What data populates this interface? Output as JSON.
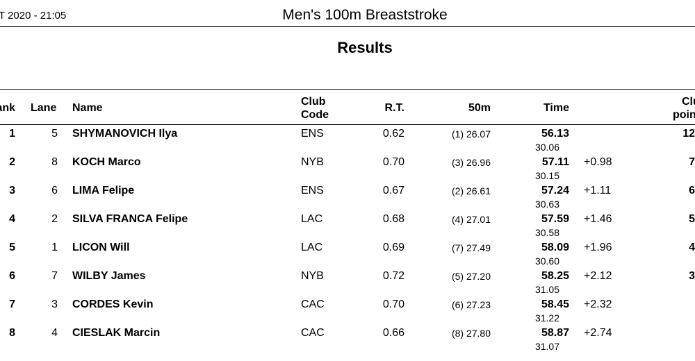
{
  "header": {
    "date_time": "T 2020 - 21:05",
    "event_title": "Men's 100m Breaststroke"
  },
  "section_title": "Results",
  "columns": {
    "rank": "ank",
    "lane": "Lane",
    "name": "Name",
    "club_code_1": "Club",
    "club_code_2": "Code",
    "rt": "R.T.",
    "split50": "50m",
    "time": "Time",
    "club_points_1": "Clu",
    "club_points_2": "poin"
  },
  "rows": [
    {
      "rank": "1",
      "lane": "5",
      "name": "SHYMANOVICH Ilya",
      "club": "ENS",
      "rt": "0.62",
      "split50": "(1) 26.07",
      "time": "56.13",
      "split2": "30.06",
      "behind": "",
      "points": "12"
    },
    {
      "rank": "2",
      "lane": "8",
      "name": "KOCH Marco",
      "club": "NYB",
      "rt": "0.70",
      "split50": "(3) 26.96",
      "time": "57.11",
      "split2": "30.15",
      "behind": "+0.98",
      "points": "7"
    },
    {
      "rank": "3",
      "lane": "6",
      "name": "LIMA Felipe",
      "club": "ENS",
      "rt": "0.67",
      "split50": "(2) 26.61",
      "time": "57.24",
      "split2": "30.63",
      "behind": "+1.11",
      "points": "6"
    },
    {
      "rank": "4",
      "lane": "2",
      "name": "SILVA FRANCA Felipe",
      "club": "LAC",
      "rt": "0.68",
      "split50": "(4) 27.01",
      "time": "57.59",
      "split2": "30.58",
      "behind": "+1.46",
      "points": "5"
    },
    {
      "rank": "5",
      "lane": "1",
      "name": "LICON Will",
      "club": "LAC",
      "rt": "0.69",
      "split50": "(7) 27.49",
      "time": "58.09",
      "split2": "30.60",
      "behind": "+1.96",
      "points": "4"
    },
    {
      "rank": "6",
      "lane": "7",
      "name": "WILBY James",
      "club": "NYB",
      "rt": "0.72",
      "split50": "(5) 27.20",
      "time": "58.25",
      "split2": "31.05",
      "behind": "+2.12",
      "points": "3"
    },
    {
      "rank": "7",
      "lane": "3",
      "name": "CORDES Kevin",
      "club": "CAC",
      "rt": "0.70",
      "split50": "(6) 27.23",
      "time": "58.45",
      "split2": "31.22",
      "behind": "+2.32",
      "points": ""
    },
    {
      "rank": "8",
      "lane": "4",
      "name": "CIESLAK Marcin",
      "club": "CAC",
      "rt": "0.66",
      "split50": "(8) 27.80",
      "time": "58.87",
      "split2": "31.07",
      "behind": "+2.74",
      "points": ""
    }
  ]
}
